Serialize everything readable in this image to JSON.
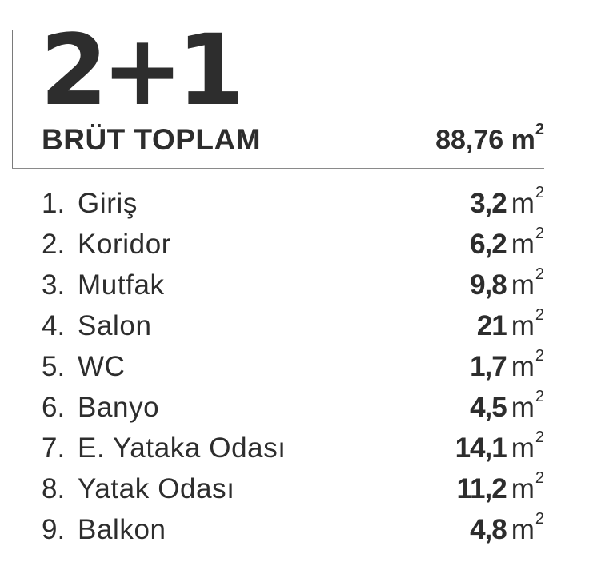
{
  "plan": {
    "type": "2+1",
    "total_label": "BRÜT TOPLAM",
    "total_value": "88,76",
    "total_unit": "m",
    "total_unit_exp": "2"
  },
  "rooms": [
    {
      "num": "1.",
      "name": "Giriş",
      "area": "3,2",
      "unit": "m",
      "exp": "2"
    },
    {
      "num": "2.",
      "name": "Koridor",
      "area": "6,2",
      "unit": "m",
      "exp": "2"
    },
    {
      "num": "3.",
      "name": "Mutfak",
      "area": "9,8",
      "unit": "m",
      "exp": "2"
    },
    {
      "num": "4.",
      "name": "Salon",
      "area": "21",
      "unit": "m",
      "exp": "2"
    },
    {
      "num": "5.",
      "name": "WC",
      "area": "1,7",
      "unit": "m",
      "exp": "2"
    },
    {
      "num": "6.",
      "name": "Banyo",
      "area": "4,5",
      "unit": "m",
      "exp": "2"
    },
    {
      "num": "7.",
      "name": "E. Yataka Odası",
      "area": "14,1",
      "unit": "m",
      "exp": "2"
    },
    {
      "num": "8.",
      "name": "Yatak Odası",
      "area": "11,2",
      "unit": "m",
      "exp": "2"
    },
    {
      "num": "9.",
      "name": "Balkon",
      "area": "4,8",
      "unit": "m",
      "exp": "2"
    }
  ]
}
